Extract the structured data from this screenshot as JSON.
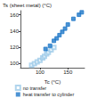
{
  "chart_data": {
    "type": "scatter",
    "x_label": "Tc (°C)",
    "y_label": "Ts (sheet metal) (°C)",
    "xlim": [
      65,
      180
    ],
    "xticks": [
      100,
      150
    ],
    "ylim": [
      95,
      165
    ],
    "yticks": [
      100,
      120,
      140,
      160
    ],
    "grid": false,
    "legend": "bottom",
    "series": [
      {
        "name": "no transfer",
        "color": "#9ecbe8",
        "marker": "open_square",
        "x": [
          85,
          90,
          95,
          100,
          105,
          108,
          112,
          115,
          120,
          125
        ],
        "values": [
          98,
          100,
          102,
          104,
          107,
          109,
          112,
          114,
          117,
          120
        ]
      },
      {
        "name": "heat transfer to cylinder",
        "color": "#1f78c8",
        "marker": "square",
        "x": [
          110,
          118,
          125,
          130,
          135,
          140,
          145,
          150,
          160,
          170,
          175
        ],
        "values": [
          118,
          122,
          128,
          131,
          135,
          139,
          143,
          148,
          155,
          160,
          163
        ]
      }
    ]
  }
}
